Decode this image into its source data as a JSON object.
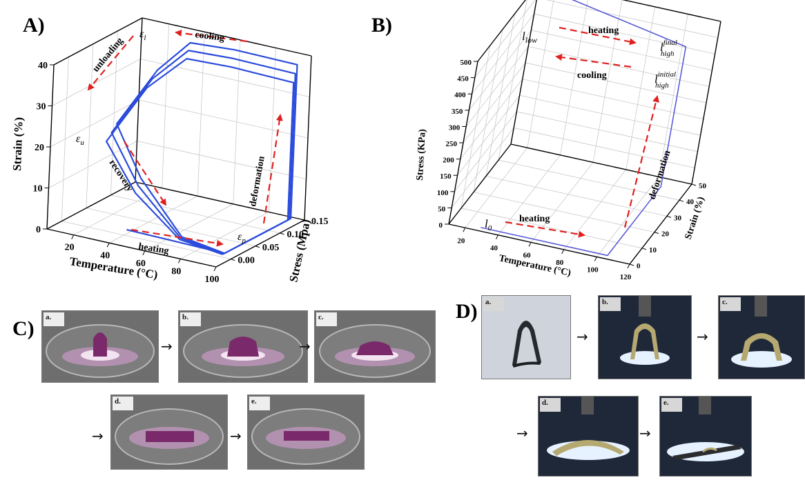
{
  "panels": {
    "A": "A)",
    "B": "B)",
    "C": "C)",
    "D": "D)"
  },
  "chart_data": [
    {
      "type": "line",
      "panel": "A",
      "projection": "3d",
      "xlabel": "Temperature (°C)",
      "ylabel": "Stress (Mpa)",
      "zlabel": "Strain (%)",
      "x_ticks": [
        "20",
        "40",
        "60",
        "80",
        "100"
      ],
      "y_ticks": [
        "0.00",
        "0.05",
        "0.10",
        "0.15"
      ],
      "z_ticks": [
        "0",
        "10",
        "20",
        "30",
        "40"
      ],
      "xlim": [
        5,
        100
      ],
      "ylim": [
        -0.03,
        0.15
      ],
      "zlim": [
        0,
        40
      ],
      "series": [
        {
          "points": [
            [
              40,
              0.005,
              1
            ],
            [
              70,
              0.005,
              0.8
            ],
            [
              95,
              0.005,
              0.6
            ],
            [
              95,
              0.14,
              0.5
            ],
            [
              95,
              0.14,
              38
            ],
            [
              60,
              0.14,
              38.2
            ],
            [
              35,
              0.14,
              37.5
            ],
            [
              20,
              0.13,
              30
            ],
            [
              20,
              0.05,
              22
            ],
            [
              40,
              0.03,
              12
            ],
            [
              70,
              0.008,
              2
            ],
            [
              95,
              0.005,
              0.6
            ]
          ]
        },
        {
          "points": [
            [
              95,
              0.003,
              0.6
            ],
            [
              95,
              0.137,
              0.5
            ],
            [
              95,
              0.137,
              36
            ],
            [
              60,
              0.137,
              36.3
            ],
            [
              35,
              0.137,
              35.8
            ],
            [
              20,
              0.12,
              28.5
            ],
            [
              20,
              0.04,
              20.5
            ],
            [
              40,
              0.025,
              10.5
            ],
            [
              70,
              0.006,
              1.8
            ],
            [
              95,
              0.003,
              0.6
            ]
          ]
        },
        {
          "points": [
            [
              95,
              0.001,
              0.6
            ],
            [
              95,
              0.134,
              0.5
            ],
            [
              95,
              0.134,
              34
            ],
            [
              60,
              0.134,
              34.4
            ],
            [
              35,
              0.134,
              34
            ],
            [
              20,
              0.11,
              27
            ],
            [
              20,
              0.03,
              19
            ],
            [
              40,
              0.02,
              9
            ],
            [
              70,
              0.004,
              1.6
            ],
            [
              95,
              0.001,
              0.6
            ]
          ]
        }
      ],
      "annotations": [
        "cooling",
        "unloading",
        "recovery",
        "heating",
        "deformation",
        "εl",
        "εu",
        "εp"
      ]
    },
    {
      "type": "line",
      "panel": "B",
      "projection": "3d",
      "xlabel": "Temperature (°C)",
      "ylabel": "Strain (%)",
      "zlabel": "Stress (KPa)",
      "x_ticks": [
        "20",
        "40",
        "60",
        "80",
        "100",
        "120"
      ],
      "y_ticks": [
        "0",
        "10",
        "20",
        "30",
        "40",
        "50"
      ],
      "z_ticks": [
        "0",
        "50",
        "100",
        "150",
        "200",
        "250",
        "300",
        "350",
        "400",
        "450",
        "500"
      ],
      "xlim": [
        10,
        120
      ],
      "ylim": [
        0,
        50
      ],
      "zlim": [
        0,
        500
      ],
      "series": [
        {
          "points": [
            [
              28,
              2,
              0
            ],
            [
              105,
              2,
              0
            ],
            [
              105,
              45,
              0
            ],
            [
              105,
              45,
              430
            ],
            [
              28,
              45,
              500
            ]
          ]
        }
      ],
      "annotations": [
        "heating",
        "heating",
        "cooling",
        "deformation",
        "l0",
        "llow",
        "lhigh final",
        "lhigh initial"
      ]
    }
  ],
  "panel_c": {
    "labels": [
      "a.",
      "b.",
      "c.",
      "d.",
      "e."
    ]
  },
  "panel_d": {
    "labels": [
      "a.",
      "b.",
      "c.",
      "d.",
      "e."
    ]
  }
}
